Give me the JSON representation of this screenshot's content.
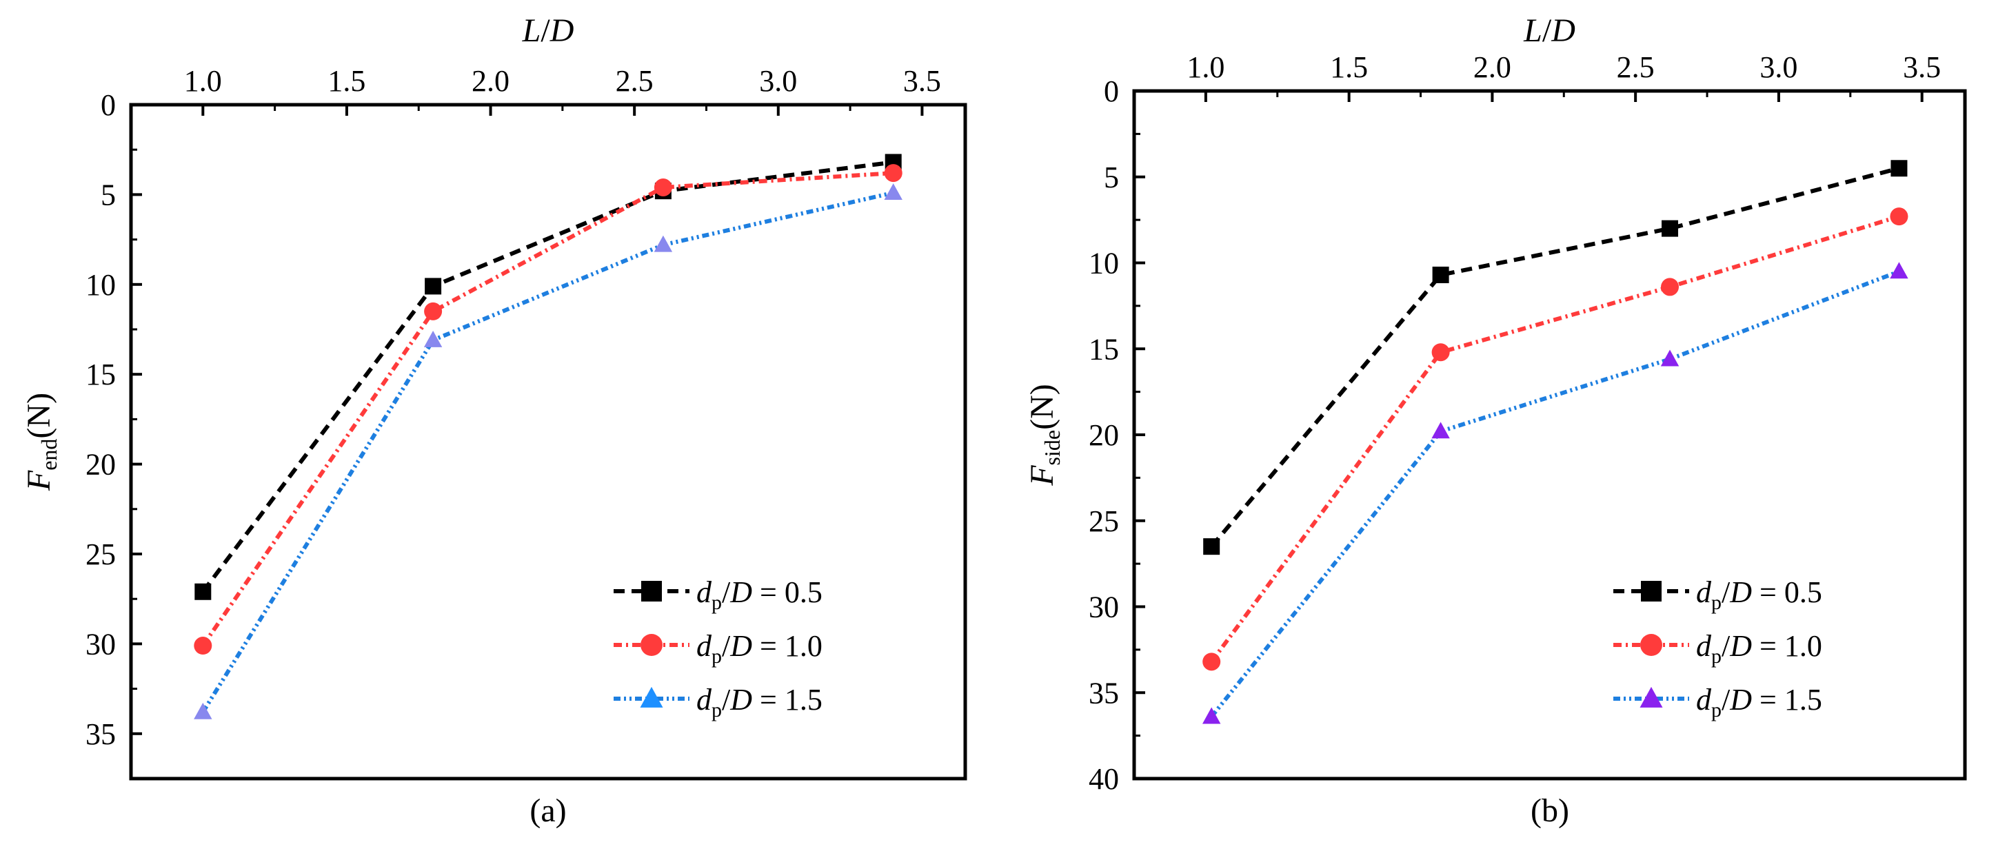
{
  "chart_data": [
    {
      "type": "line",
      "panel_label": "(a)",
      "xlabel": "L/D",
      "xlabel_parts": {
        "l": "L",
        "slash": "/",
        "d": "D"
      },
      "ylabel": "F_end(N)",
      "ylabel_parts": {
        "f": "F",
        "sub": "end",
        "unit": "(N)"
      },
      "xlim": [
        0.75,
        3.65
      ],
      "ylim": [
        37.5,
        0
      ],
      "xaxis_position": "top",
      "y_inverted": true,
      "xticks": [
        "1.0",
        "1.5",
        "2.0",
        "2.5",
        "3.0",
        "3.5"
      ],
      "yticks": [
        "0",
        "5",
        "10",
        "15",
        "20",
        "25",
        "30",
        "35"
      ],
      "legend_position": "bottom-right",
      "series": [
        {
          "name": "dp/D = 0.5",
          "legend": {
            "d": "d",
            "sub": "p",
            "slash": "/",
            "D": "D",
            "eq": " = 0.5"
          },
          "color": "#000000",
          "marker": "square",
          "dash": "16,10",
          "x": [
            1.0,
            1.8,
            2.6,
            3.4
          ],
          "values": [
            27.1,
            10.1,
            4.8,
            3.2
          ]
        },
        {
          "name": "dp/D = 1.0",
          "legend": {
            "d": "d",
            "sub": "p",
            "slash": "/",
            "D": "D",
            "eq": " = 1.0"
          },
          "color": "#ff3b3b",
          "marker": "circle",
          "dash": "12,6,3,6",
          "x": [
            1.0,
            1.8,
            2.6,
            3.4
          ],
          "values": [
            30.1,
            11.5,
            4.6,
            3.8
          ]
        },
        {
          "name": "dp/D = 1.5",
          "legend": {
            "d": "d",
            "sub": "p",
            "slash": "/",
            "D": "D",
            "eq": " = 1.5"
          },
          "color": "#1e7fe0",
          "marker_color": "#8888ee",
          "legend_marker_color": "#1e90ff",
          "marker": "triangle",
          "dash": "10,5,3,5,3,5",
          "x": [
            1.0,
            1.8,
            2.6,
            3.4
          ],
          "values": [
            33.8,
            13.1,
            7.8,
            4.9
          ]
        }
      ]
    },
    {
      "type": "line",
      "panel_label": "(b)",
      "xlabel": "L/D",
      "xlabel_parts": {
        "l": "L",
        "slash": "/",
        "d": "D"
      },
      "ylabel": "F_side(N)",
      "ylabel_parts": {
        "f": "F",
        "sub": "side",
        "unit": "(N)"
      },
      "xlim": [
        0.75,
        3.65
      ],
      "ylim": [
        40,
        0
      ],
      "xaxis_position": "top",
      "y_inverted": true,
      "xticks": [
        "1.0",
        "1.5",
        "2.0",
        "2.5",
        "3.0",
        "3.5"
      ],
      "yticks": [
        "0",
        "5",
        "10",
        "15",
        "20",
        "25",
        "30",
        "35",
        "40"
      ],
      "legend_position": "bottom-right",
      "series": [
        {
          "name": "dp/D = 0.5",
          "legend": {
            "d": "d",
            "sub": "p",
            "slash": "/",
            "D": "D",
            "eq": " = 0.5"
          },
          "color": "#000000",
          "marker": "square",
          "dash": "16,10",
          "x": [
            1.02,
            1.82,
            2.62,
            3.42
          ],
          "values": [
            26.5,
            10.7,
            8.0,
            4.5
          ]
        },
        {
          "name": "dp/D = 1.0",
          "legend": {
            "d": "d",
            "sub": "p",
            "slash": "/",
            "D": "D",
            "eq": " = 1.0"
          },
          "color": "#ff3b3b",
          "marker": "circle",
          "dash": "12,6,3,6",
          "x": [
            1.02,
            1.82,
            2.62,
            3.42
          ],
          "values": [
            33.2,
            15.2,
            11.4,
            7.3
          ]
        },
        {
          "name": "dp/D = 1.5",
          "legend": {
            "d": "d",
            "sub": "p",
            "slash": "/",
            "D": "D",
            "eq": " = 1.5"
          },
          "color": "#1e7fe0",
          "marker_color": "#8a22ee",
          "legend_marker_color": "#8a22ee",
          "marker": "triangle",
          "dash": "10,5,3,5,3,5",
          "x": [
            1.02,
            1.82,
            2.62,
            3.42
          ],
          "values": [
            36.4,
            19.8,
            15.6,
            10.5
          ]
        }
      ]
    }
  ]
}
